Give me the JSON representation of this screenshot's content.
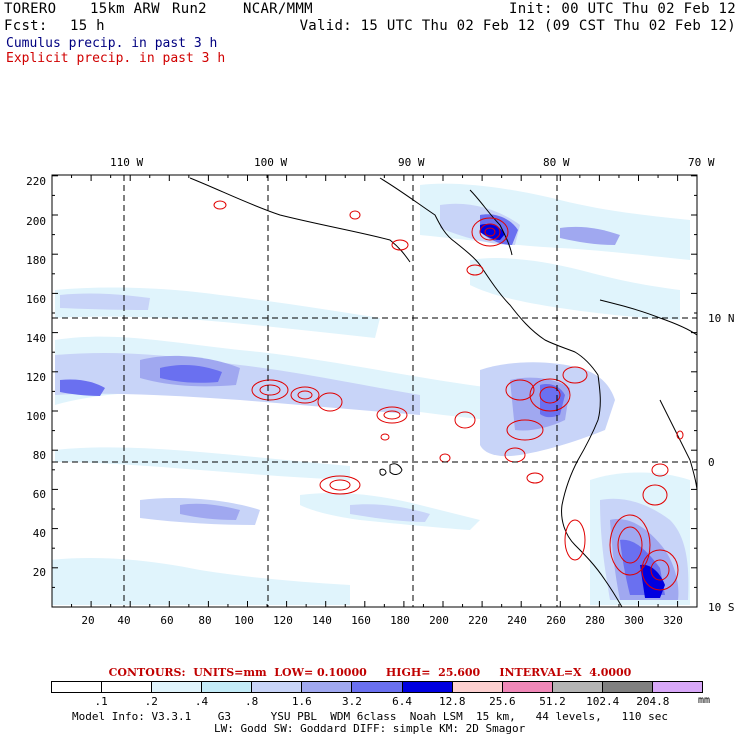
{
  "header": {
    "model": "TORERO",
    "resolution": "15km ARW",
    "run": "Run2",
    "org": "NCAR/MMM",
    "init": "Init: 00 UTC Thu 02 Feb 12",
    "fcst_label": "Fcst:",
    "fcst_value": "15 h",
    "valid": "Valid: 15 UTC Thu 02 Feb 12 (09 CST Thu 02 Feb 12)",
    "cumulus": "Cumulus precip. in past 3 h",
    "explicit": "Explicit precip. in past 3 h"
  },
  "colors": {
    "cumulus_text": "#000080",
    "explicit_text": "#d00000",
    "contour_red": "#e00000"
  },
  "map": {
    "top_lon_labels": [
      "110 W",
      "100 W",
      "90 W",
      "80 W",
      "70 W"
    ],
    "right_lat_labels": [
      "10 N",
      "0",
      "10 S"
    ],
    "y_ticks": [
      "220",
      "200",
      "180",
      "160",
      "140",
      "120",
      "100",
      "80",
      "60",
      "40",
      "20"
    ],
    "x_ticks": [
      "20",
      "40",
      "60",
      "80",
      "100",
      "120",
      "140",
      "160",
      "180",
      "200",
      "220",
      "240",
      "260",
      "280",
      "300",
      "320"
    ]
  },
  "footer": {
    "contours_text": "CONTOURS:  UNITS=mm  LOW= 0.10000     HIGH=  25.600     INTERVAL=X  4.0000",
    "colorbar_labels": [
      ".1",
      ".2",
      ".4",
      ".8",
      "1.6",
      "3.2",
      "6.4",
      "12.8",
      "25.6",
      "51.2",
      "102.4",
      "204.8"
    ],
    "colorbar_colors": [
      "#ffffff",
      "#ffffff",
      "#e0f4fc",
      "#c4ecf8",
      "#c8d4f8",
      "#a0a8f0",
      "#6a70f0",
      "#0000e0",
      "#fcd0d0",
      "#f088b8",
      "#b4b4b4",
      "#808080",
      "#d8a8f8"
    ],
    "colorbar_unit": "mm",
    "model_info_1": "Model Info: V3.3.1    G3      YSU PBL  WDM 6class  Noah LSM  15 km,   44 levels,   110 sec",
    "model_info_2": "LW: Godd SW: Goddard DIFF: simple KM: 2D Smagor"
  }
}
